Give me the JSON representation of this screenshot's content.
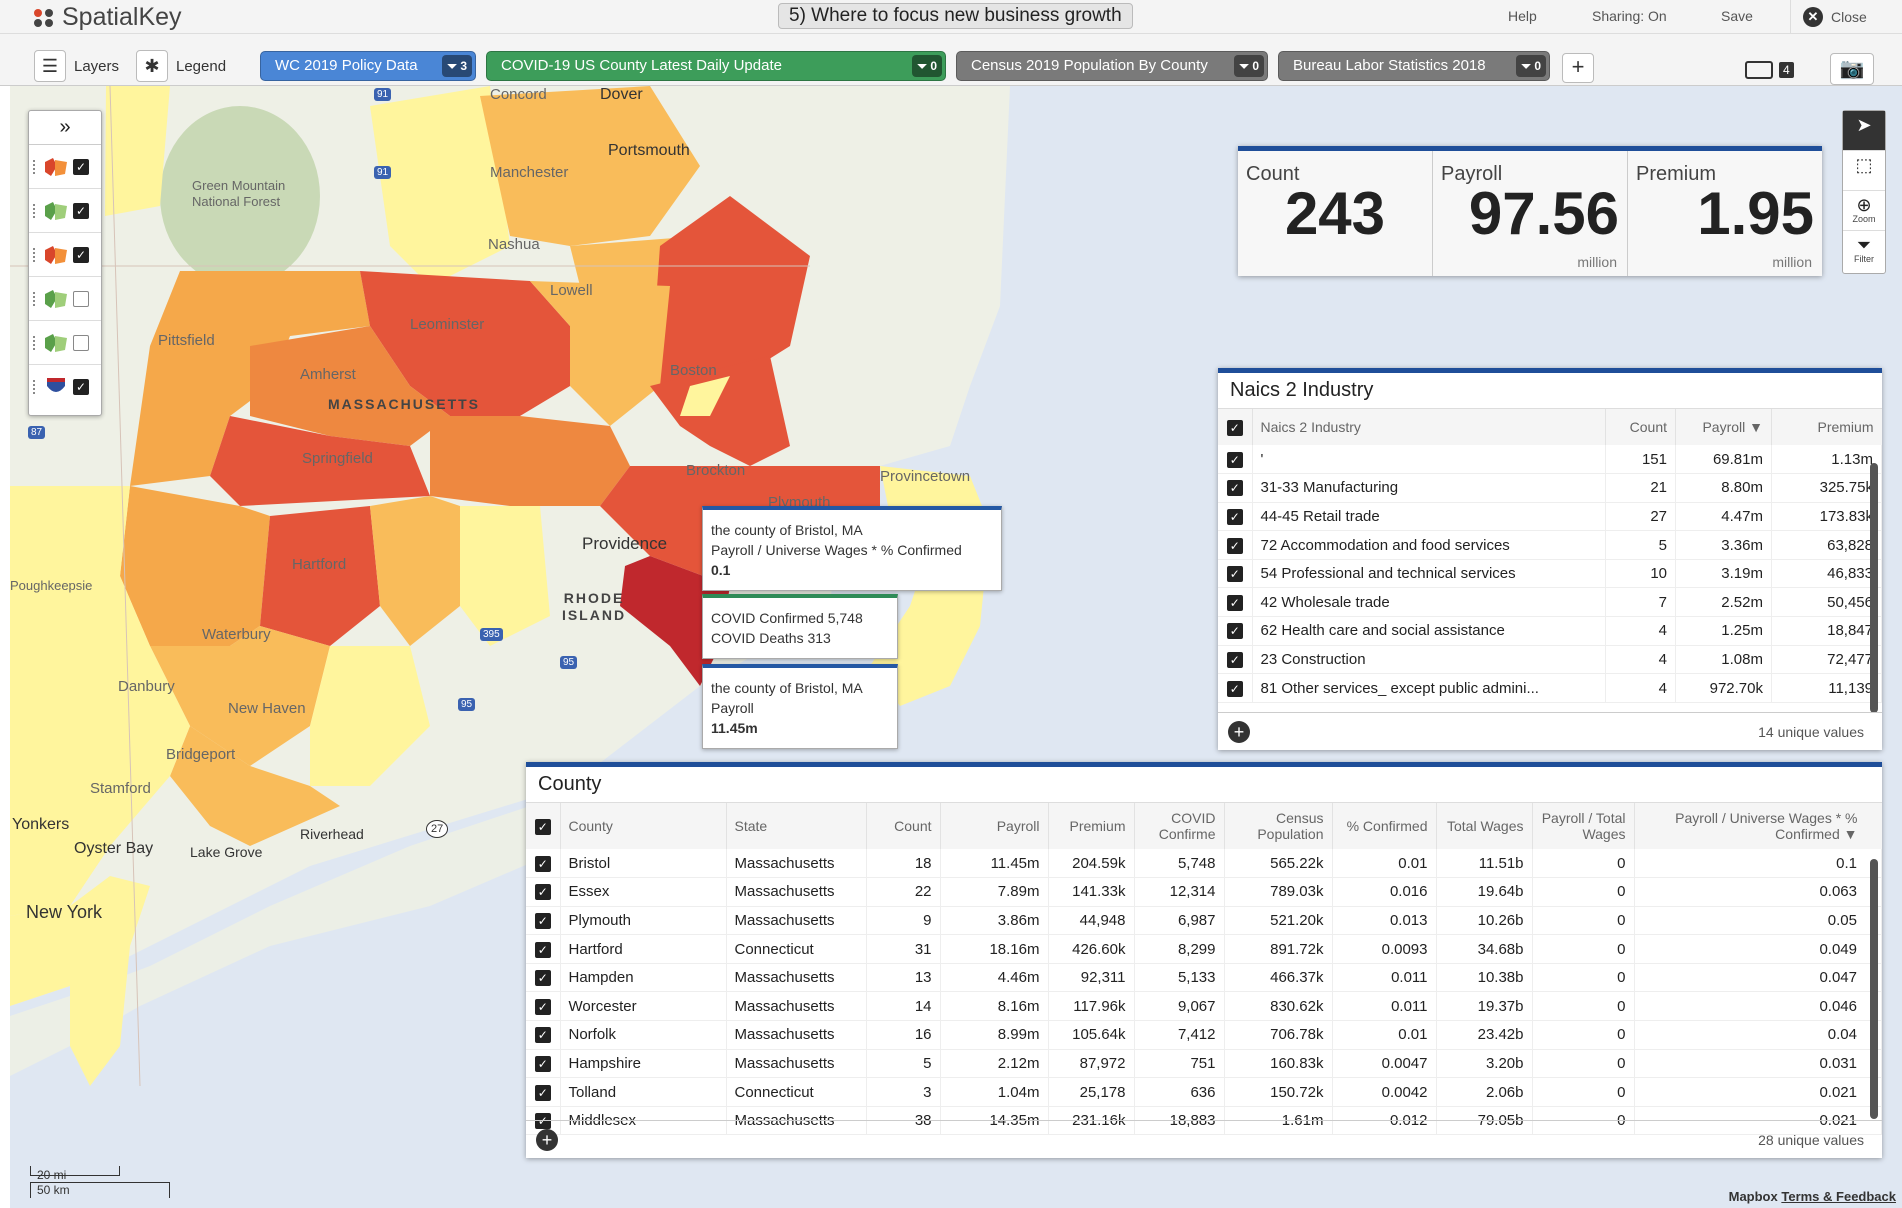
{
  "app": {
    "name": "SpatialKey",
    "dashboard_title": "5) Where to focus new business growth"
  },
  "topnav": {
    "help": "Help",
    "sharing": "Sharing: On",
    "save": "Save",
    "close": "Close"
  },
  "toolbar": {
    "layers": "Layers",
    "legend": "Legend",
    "datasets": [
      {
        "name": "WC 2019 Policy Data",
        "filters": "3",
        "color": "#4a86d6"
      },
      {
        "name": "COVID-19 US County Latest Daily Update",
        "filters": "0",
        "color": "#3d9d5a"
      },
      {
        "name": "Census 2019 Population By County",
        "filters": "0",
        "color": "#7a7a7a"
      },
      {
        "name": "Bureau Labor Statistics 2018",
        "filters": "0",
        "color": "#7a7a7a"
      }
    ],
    "window_count": "4"
  },
  "map": {
    "labels": {
      "dover": "Dover",
      "portsmouth": "Portsmouth",
      "manchester": "Manchester",
      "nashua": "Nashua",
      "lowell": "Lowell",
      "leominster": "Leominster",
      "pittsfield": "Pittsfield",
      "amherst": "Amherst",
      "springfield": "Springfield",
      "massachusetts": "MASSACHUSETTS",
      "boston": "Boston",
      "brockton": "Brockton",
      "provincetown": "Provincetown",
      "plymouth": "Plymouth",
      "providence": "Providence",
      "rhode_island": "RHODE ISLAND",
      "hartford": "Hartford",
      "waterbury": "Waterbury",
      "danbury": "Danbury",
      "new_haven": "New Haven",
      "bridgeport": "Bridgeport",
      "stamford": "Stamford",
      "yonkers": "Yonkers",
      "new_york": "New York",
      "oyster_bay": "Oyster Bay",
      "lake_grove": "Lake Grove",
      "riverhead": "Riverhead",
      "concord": "Concord",
      "green_mountain": "Green Mountain National Forest",
      "keepsie": "Poughkeepsie"
    },
    "highways": [
      "91",
      "87",
      "395",
      "95",
      "95",
      "27",
      "91"
    ],
    "scale": {
      "mi": "20 mi",
      "km": "50 km"
    },
    "attribution": {
      "brand": "Mapbox",
      "link": "Terms & Feedback"
    }
  },
  "layer_control": {
    "items": [
      {
        "checked": true
      },
      {
        "checked": true
      },
      {
        "checked": true
      },
      {
        "checked": false
      },
      {
        "checked": false
      },
      {
        "checked": true
      }
    ]
  },
  "map_tools": {
    "zoom": "Zoom",
    "filter": "Filter"
  },
  "kpi": [
    {
      "label": "Count",
      "value": "243",
      "unit": ""
    },
    {
      "label": "Payroll",
      "value": "97.56",
      "unit": "million"
    },
    {
      "label": "Premium",
      "value": "1.95",
      "unit": "million"
    }
  ],
  "tooltips": {
    "t1": {
      "line1": "the county of Bristol, MA",
      "line2": "Payroll / Universe Wages * % Confirmed",
      "value": "0.1"
    },
    "t2": {
      "line1": "COVID Confirmed  5,748",
      "line2": "COVID Deaths  313"
    },
    "t3": {
      "line1": "the county of Bristol, MA",
      "line2": "Payroll",
      "value": "11.45m"
    }
  },
  "naics": {
    "title": "Naics 2 Industry",
    "headers": [
      "Naics 2 Industry",
      "Count",
      "Payroll ▼",
      "Premium"
    ],
    "rows": [
      [
        "'",
        "151",
        "69.81m",
        "1.13m"
      ],
      [
        "31-33 Manufacturing",
        "21",
        "8.80m",
        "325.75k"
      ],
      [
        "44-45 Retail trade",
        "27",
        "4.47m",
        "173.83k"
      ],
      [
        "72 Accommodation and food services",
        "5",
        "3.36m",
        "63,828"
      ],
      [
        "54 Professional and technical services",
        "10",
        "3.19m",
        "46,833"
      ],
      [
        "42 Wholesale trade",
        "7",
        "2.52m",
        "50,456"
      ],
      [
        "62 Health care and social assistance",
        "4",
        "1.25m",
        "18,847"
      ],
      [
        "23 Construction",
        "4",
        "1.08m",
        "72,477"
      ],
      [
        "81 Other services_ except public admini...",
        "4",
        "972.70k",
        "11,139"
      ]
    ],
    "unique": "14 unique values"
  },
  "county": {
    "title": "County",
    "headers": [
      "County",
      "State",
      "Count",
      "Payroll",
      "Premium",
      "COVID Confirme",
      "Census Population",
      "% Confirmed",
      "Total Wages",
      "Payroll / Total Wages",
      "Payroll / Universe Wages * % Confirmed ▼"
    ],
    "rows": [
      [
        "Bristol",
        "Massachusetts",
        "18",
        "11.45m",
        "204.59k",
        "5,748",
        "565.22k",
        "0.01",
        "11.51b",
        "0",
        "0.1"
      ],
      [
        "Essex",
        "Massachusetts",
        "22",
        "7.89m",
        "141.33k",
        "12,314",
        "789.03k",
        "0.016",
        "19.64b",
        "0",
        "0.063"
      ],
      [
        "Plymouth",
        "Massachusetts",
        "9",
        "3.86m",
        "44,948",
        "6,987",
        "521.20k",
        "0.013",
        "10.26b",
        "0",
        "0.05"
      ],
      [
        "Hartford",
        "Connecticut",
        "31",
        "18.16m",
        "426.60k",
        "8,299",
        "891.72k",
        "0.0093",
        "34.68b",
        "0",
        "0.049"
      ],
      [
        "Hampden",
        "Massachusetts",
        "13",
        "4.46m",
        "92,311",
        "5,133",
        "466.37k",
        "0.011",
        "10.38b",
        "0",
        "0.047"
      ],
      [
        "Worcester",
        "Massachusetts",
        "14",
        "8.16m",
        "117.96k",
        "9,067",
        "830.62k",
        "0.011",
        "19.37b",
        "0",
        "0.046"
      ],
      [
        "Norfolk",
        "Massachusetts",
        "16",
        "8.99m",
        "105.64k",
        "7,412",
        "706.78k",
        "0.01",
        "23.42b",
        "0",
        "0.04"
      ],
      [
        "Hampshire",
        "Massachusetts",
        "5",
        "2.12m",
        "87,972",
        "751",
        "160.83k",
        "0.0047",
        "3.20b",
        "0",
        "0.031"
      ],
      [
        "Tolland",
        "Connecticut",
        "3",
        "1.04m",
        "25,178",
        "636",
        "150.72k",
        "0.0042",
        "2.06b",
        "0",
        "0.021"
      ],
      [
        "Middlesex",
        "Massachusetts",
        "38",
        "14.35m",
        "231.16k",
        "18,883",
        "1.61m",
        "0.012",
        "79.05b",
        "0",
        "0.021"
      ]
    ],
    "unique": "28 unique values"
  }
}
